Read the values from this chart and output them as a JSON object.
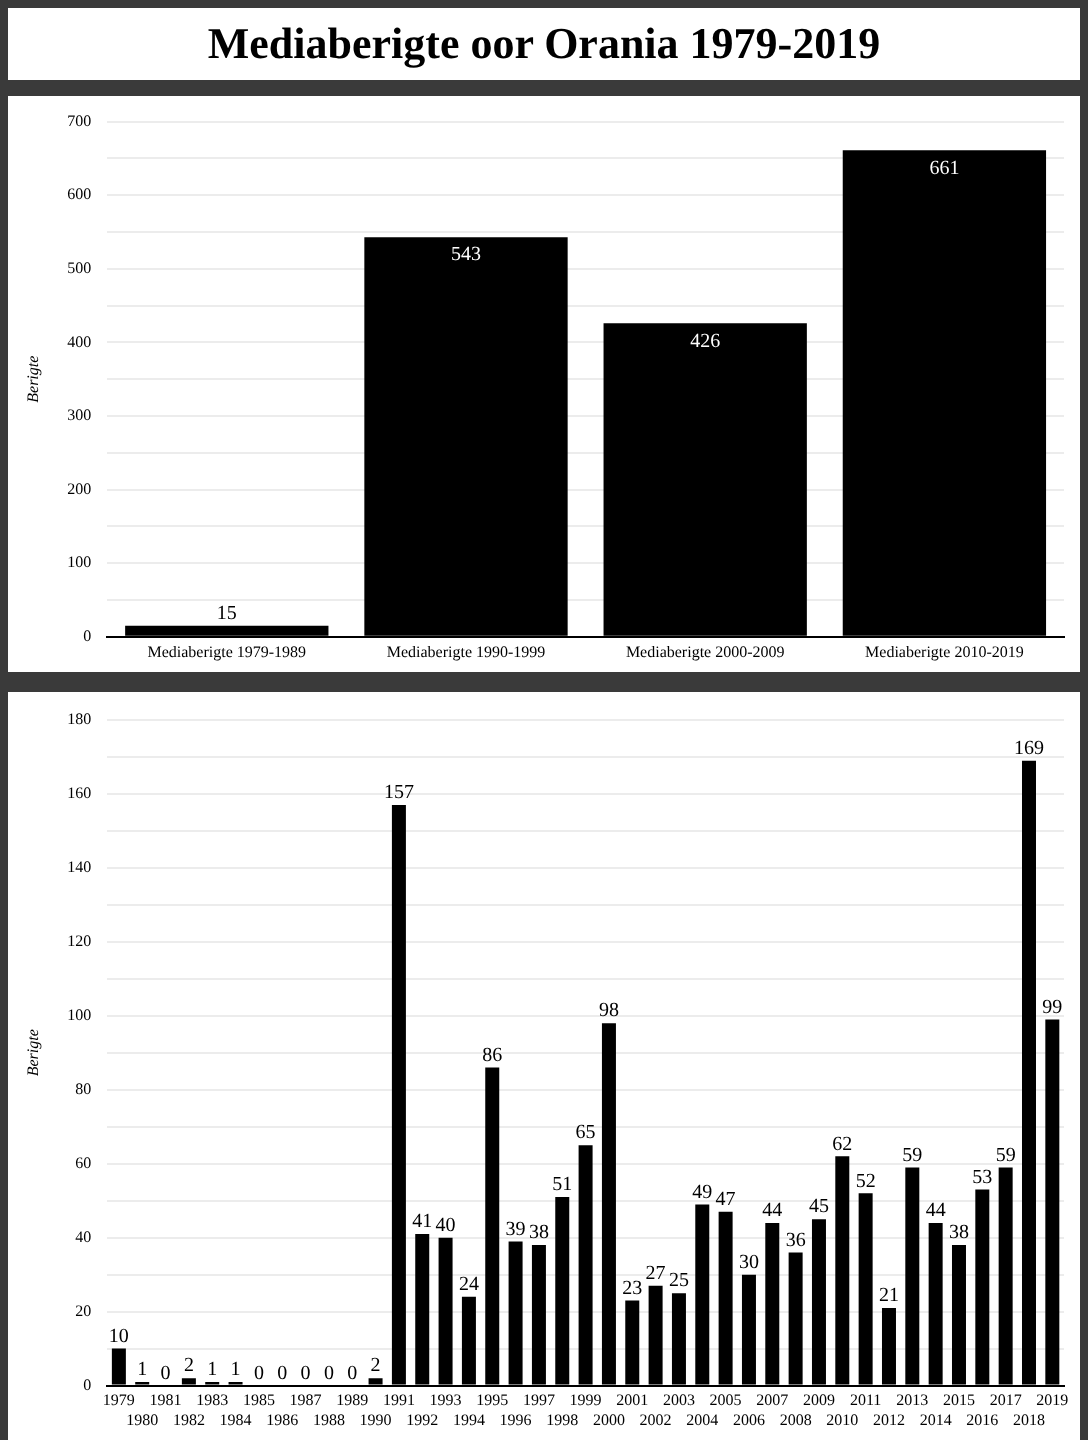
{
  "chart_data": [
    {
      "type": "bar",
      "title": "Mediaberigte oor Orania 1979-2019",
      "ylabel": "Berigte",
      "categories": [
        "Mediaberigte 1979-1989",
        "Mediaberigte 1990-1999",
        "Mediaberigte 2000-2009",
        "Mediaberigte 2010-2019"
      ],
      "values": [
        15,
        543,
        426,
        661
      ],
      "color": "#000000",
      "data_labels": true,
      "grid": "y",
      "legend": false,
      "ylim": [
        0,
        700
      ],
      "yticks": [
        0,
        {
          "value": 50,
          "label": null
        },
        100,
        {
          "value": 150,
          "label": null
        },
        200,
        {
          "value": 250,
          "label": null
        },
        300,
        {
          "value": 350,
          "label": null
        },
        400,
        {
          "value": 450,
          "label": null
        },
        500,
        {
          "value": 550,
          "label": null
        },
        600,
        {
          "value": 650,
          "label": null
        },
        700
      ]
    },
    {
      "type": "bar",
      "ylabel": "Berigte",
      "categories": [
        "1979",
        "1980",
        "1981",
        "1982",
        "1983",
        "1984",
        "1985",
        "1986",
        "1987",
        "1988",
        "1989",
        "1990",
        "1991",
        "1992",
        "1993",
        "1994",
        "1995",
        "1996",
        "1997",
        "1998",
        "1999",
        "2000",
        "2001",
        "2002",
        "2003",
        "2004",
        "2005",
        "2006",
        "2007",
        "2008",
        "2009",
        "2010",
        "2011",
        "2012",
        "2013",
        "2014",
        "2015",
        "2016",
        "2017",
        "2018",
        "2019"
      ],
      "values": [
        10,
        1,
        0,
        2,
        1,
        1,
        0,
        0,
        0,
        0,
        0,
        2,
        157,
        41,
        40,
        24,
        86,
        39,
        38,
        51,
        65,
        98,
        23,
        27,
        25,
        49,
        47,
        30,
        44,
        36,
        45,
        62,
        52,
        21,
        59,
        44,
        38,
        53,
        59,
        169,
        99
      ],
      "color": "#000000",
      "data_labels": true,
      "grid": "y",
      "legend": false,
      "ylim": [
        0,
        180
      ],
      "yticks": [
        0,
        {
          "value": 10,
          "label": null
        },
        20,
        {
          "value": 30,
          "label": null
        },
        40,
        {
          "value": 50,
          "label": null
        },
        60,
        {
          "value": 70,
          "label": null
        },
        80,
        {
          "value": 90,
          "label": null
        },
        100,
        {
          "value": 110,
          "label": null
        },
        120,
        {
          "value": 130,
          "label": null
        },
        140,
        {
          "value": 150,
          "label": null
        },
        160,
        {
          "value": 170,
          "label": null
        },
        180
      ]
    }
  ]
}
